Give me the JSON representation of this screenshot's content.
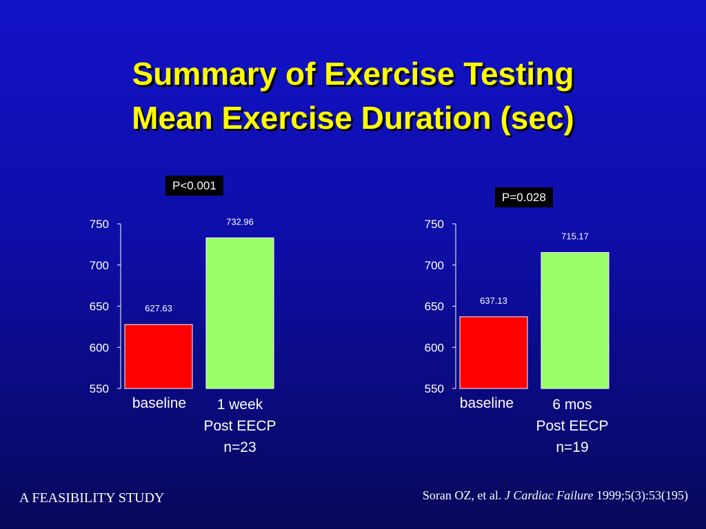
{
  "slide": {
    "title_line1": "Summary of Exercise Testing",
    "title_line2": "Mean Exercise Duration (sec)",
    "footer_left": "A FEASIBILITY STUDY",
    "citation_authors": "Soran OZ, et al.",
    "citation_journal": "J Cardiac Failure",
    "citation_ref": "1999;5(3):53(195)"
  },
  "colors": {
    "background": "#1010b8",
    "title": "#ffff00",
    "baseline_bar": "#ff0000",
    "post_bar": "#99ff66"
  },
  "chart_data": [
    {
      "type": "bar",
      "p_value": "P<0.001",
      "ylim": [
        550,
        750
      ],
      "yticks": [
        550,
        600,
        650,
        700,
        750
      ],
      "categories": [
        [
          "baseline"
        ],
        [
          "1 week",
          "Post EECP",
          "n=23"
        ]
      ],
      "values": [
        627.63,
        732.96
      ],
      "value_labels": [
        "627.63",
        "732.96"
      ],
      "bar_colors": [
        "#ff0000",
        "#99ff66"
      ]
    },
    {
      "type": "bar",
      "p_value": "P=0.028",
      "ylim": [
        550,
        750
      ],
      "yticks": [
        550,
        600,
        650,
        700,
        750
      ],
      "categories": [
        [
          "baseline"
        ],
        [
          "6 mos",
          "Post EECP",
          "n=19"
        ]
      ],
      "values": [
        637.13,
        715.17
      ],
      "value_labels": [
        "637.13",
        "715.17"
      ],
      "bar_colors": [
        "#ff0000",
        "#99ff66"
      ]
    }
  ]
}
